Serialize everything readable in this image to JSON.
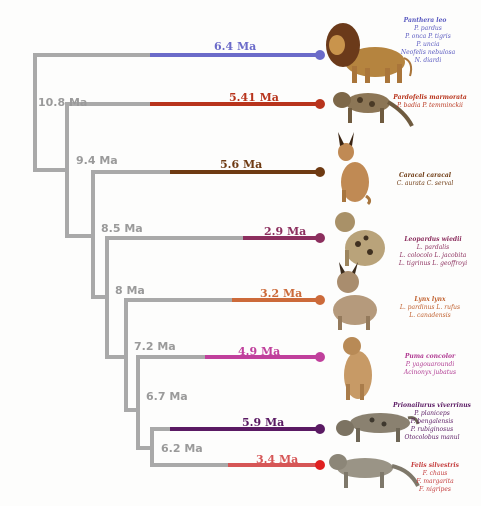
{
  "nodes": [
    {
      "id": "n1",
      "label": "10.8 Ma"
    },
    {
      "id": "n2",
      "label": "9.4 Ma"
    },
    {
      "id": "n3",
      "label": "8.5 Ma"
    },
    {
      "id": "n4",
      "label": "8 Ma"
    },
    {
      "id": "n5",
      "label": "7.2 Ma"
    },
    {
      "id": "n6",
      "label": "6.7 Ma"
    },
    {
      "id": "n7",
      "label": "6.2 Ma"
    }
  ],
  "lineages": [
    {
      "id": "panthera",
      "age": "6.4 Ma",
      "color": "#6b6bc9",
      "animal": "lion",
      "species_main": "Panthera leo",
      "species_lines": [
        "P. pardus",
        "P. onca   P. tigris",
        "P. uncia",
        "Neofelis nebulosa",
        "N. diardi"
      ],
      "text_color": "#5a5ac0"
    },
    {
      "id": "pardofelis",
      "age": "5.41 Ma",
      "color": "#b8341c",
      "animal": "marbled-cat",
      "species_main": "Pardofelis marmorata",
      "species_lines": [
        "P. badia   P. temminckii"
      ],
      "text_color": "#b8341c"
    },
    {
      "id": "caracal",
      "age": "5.6 Ma",
      "color": "#6e3a12",
      "animal": "caracal",
      "species_main": "Caracal caracal",
      "species_lines": [
        "C. aurata   C. serval"
      ],
      "text_color": "#6e3a12"
    },
    {
      "id": "leopardus",
      "age": "2.9 Ma",
      "color": "#8c2f5e",
      "animal": "ocelot",
      "species_main": "Leopardus wiedii",
      "species_lines": [
        "L. pardalis",
        "L. colocolo   L. jacobita",
        "L. tigrinus   L. geoffroyi"
      ],
      "text_color": "#8c2f5e"
    },
    {
      "id": "lynx",
      "age": "3.2 Ma",
      "color": "#cc6a3a",
      "animal": "lynx",
      "species_main": "Lynx lynx",
      "species_lines": [
        "L. pardinus   L. rufus",
        "L. canadensis"
      ],
      "text_color": "#c0602e"
    },
    {
      "id": "puma",
      "age": "4.9 Ma",
      "color": "#c0409c",
      "animal": "puma",
      "species_main": "Puma concolor",
      "species_lines": [
        "P. yagouaroundi",
        "Acinonyx jubatus"
      ],
      "text_color": "#b03a92"
    },
    {
      "id": "prionailurus",
      "age": "5.9 Ma",
      "color": "#5a1a63",
      "animal": "fishing-cat",
      "species_main": "Prionailurus viverrinus",
      "species_lines": [
        "P. planiceps",
        "P. bengalensis",
        "P. rubiginosus",
        "Otocolobus manul"
      ],
      "text_color": "#5a1a63"
    },
    {
      "id": "felis",
      "age": "3.4 Ma",
      "color": "#d65656",
      "animal": "wildcat",
      "species_main": "Felis silvestris",
      "species_lines": [
        "F. chaus",
        "F. margarita",
        "F. nigripes"
      ],
      "text_color": "#c43c3c"
    }
  ]
}
